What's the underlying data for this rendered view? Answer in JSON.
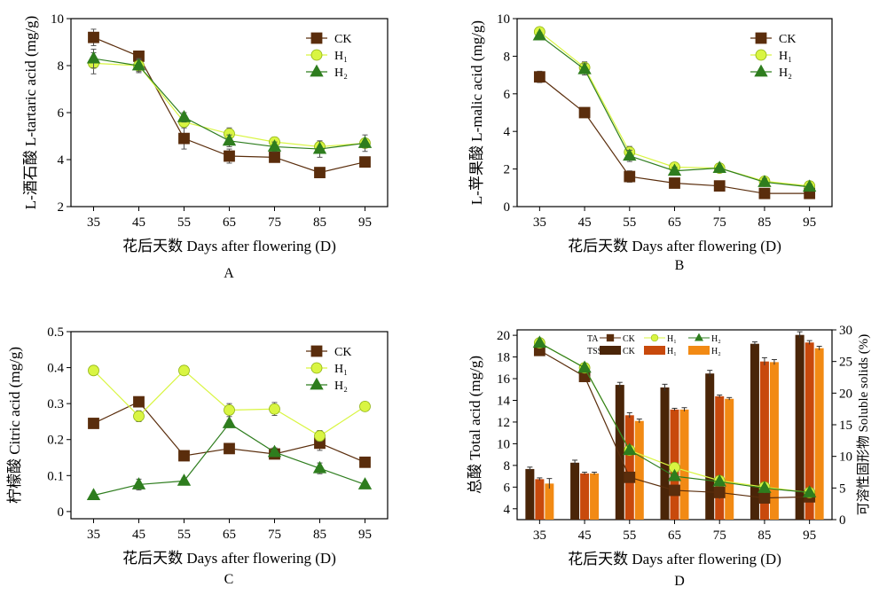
{
  "colors": {
    "ck": "#5a2d0c",
    "h1": "#d9f542",
    "h2": "#2e7d1e",
    "tss_ck": "#4a2508",
    "tss_h1": "#c8490c",
    "tss_h2": "#f28a14",
    "h1_stroke": "#8fb314"
  },
  "chart_data": [
    {
      "panel": "A",
      "type": "line",
      "xlabel": "花后天数 Days after flowering (D)",
      "ylabel": "L-酒石酸 L-tartaric acid (mg/g)",
      "x": [
        35,
        45,
        55,
        65,
        75,
        85,
        95
      ],
      "xlim": [
        30,
        100
      ],
      "ylim": [
        2,
        10
      ],
      "yticks": [
        2,
        4,
        6,
        8,
        10
      ],
      "legend_position": "top-right",
      "series": [
        {
          "name": "CK",
          "values": [
            9.2,
            8.4,
            4.9,
            4.15,
            4.1,
            3.45,
            3.9
          ],
          "errors": [
            0.35,
            0.2,
            0.45,
            0.3,
            0.1,
            0.1,
            0.1
          ]
        },
        {
          "name": "H₁",
          "values": [
            8.1,
            8.0,
            5.6,
            5.1,
            4.75,
            4.55,
            4.7
          ],
          "errors": [
            0.45,
            0.25,
            0.2,
            0.25,
            0.2,
            0.2,
            0.2
          ]
        },
        {
          "name": "H₂",
          "values": [
            8.3,
            8.0,
            5.8,
            4.8,
            4.55,
            4.45,
            4.7
          ],
          "errors": [
            0.4,
            0.3,
            0.2,
            0.25,
            0.2,
            0.35,
            0.35
          ]
        }
      ]
    },
    {
      "panel": "B",
      "type": "line",
      "xlabel": "花后天数 Days after flowering (D)",
      "ylabel": "L-苹果酸 L-malic acid (mg/g)",
      "x": [
        35,
        45,
        55,
        65,
        75,
        85,
        95
      ],
      "xlim": [
        30,
        100
      ],
      "ylim": [
        0,
        10
      ],
      "yticks": [
        0,
        2,
        4,
        6,
        8,
        10
      ],
      "legend_position": "top-right",
      "series": [
        {
          "name": "CK",
          "values": [
            6.9,
            5.0,
            1.6,
            1.25,
            1.1,
            0.7,
            0.7
          ],
          "errors": [
            0.3,
            0.1,
            0.3,
            0.15,
            0.2,
            0.1,
            0.1
          ]
        },
        {
          "name": "H₁",
          "values": [
            9.3,
            7.4,
            2.9,
            2.1,
            2.05,
            1.35,
            1.1
          ],
          "errors": [
            0.15,
            0.3,
            0.3,
            0.15,
            0.1,
            0.2,
            0.15
          ]
        },
        {
          "name": "H₂",
          "values": [
            9.1,
            7.3,
            2.7,
            1.9,
            2.05,
            1.3,
            1.05
          ],
          "errors": [
            0.15,
            0.3,
            0.3,
            0.2,
            0.1,
            0.2,
            0.15
          ]
        }
      ]
    },
    {
      "panel": "C",
      "type": "line",
      "xlabel": "花后天数 Days after flowering (D)",
      "ylabel": "柠檬酸 Citric acid (mg/g)",
      "x": [
        35,
        45,
        55,
        65,
        75,
        85,
        95
      ],
      "xlim": [
        30,
        100
      ],
      "ylim": [
        -0.02,
        0.5
      ],
      "yticks": [
        0,
        0.1,
        0.2,
        0.3,
        0.4,
        0.5
      ],
      "legend_position": "top-right",
      "series": [
        {
          "name": "CK",
          "values": [
            0.245,
            0.305,
            0.155,
            0.175,
            0.16,
            0.19,
            0.137
          ],
          "errors": [
            0.008,
            0.008,
            0.008,
            0.008,
            0.008,
            0.02,
            0.008
          ]
        },
        {
          "name": "H₁",
          "values": [
            0.392,
            0.265,
            0.392,
            0.282,
            0.285,
            0.21,
            0.292
          ],
          "errors": [
            0.008,
            0.015,
            0.012,
            0.018,
            0.018,
            0.015,
            0.012
          ]
        },
        {
          "name": "H₂",
          "values": [
            0.045,
            0.075,
            0.085,
            0.245,
            0.165,
            0.12,
            0.075
          ],
          "errors": [
            0.005,
            0.015,
            0.008,
            0.008,
            0.012,
            0.015,
            0.008
          ]
        }
      ]
    },
    {
      "panel": "D",
      "type": "bar+line",
      "xlabel": "花后天数 Days after flowering (D)",
      "ylabel": "总酸 Total acid (mg/g)",
      "ylabel_right": "可溶性固形物 Soluble solids (%)",
      "x": [
        35,
        45,
        55,
        65,
        75,
        85,
        95
      ],
      "xlim": [
        30,
        100
      ],
      "ylim": [
        3,
        20.5
      ],
      "yticks": [
        4,
        6,
        8,
        10,
        12,
        14,
        16,
        18,
        20
      ],
      "ylim_right": [
        0,
        30
      ],
      "yticks_right": [
        0,
        5,
        10,
        15,
        20,
        25,
        30
      ],
      "legend_position": "top-center",
      "legend_groups": [
        "TA",
        "TSS"
      ],
      "lines_TA": [
        {
          "name": "CK",
          "values": [
            18.6,
            16.2,
            6.9,
            5.7,
            5.5,
            5.0,
            5.1
          ],
          "errors": [
            0.3,
            0.5,
            0.3,
            0.5,
            0.6,
            0.4,
            0.3
          ]
        },
        {
          "name": "H₁",
          "values": [
            19.3,
            17.0,
            9.4,
            7.8,
            6.6,
            6.0,
            5.5
          ],
          "errors": [
            0.2,
            0.3,
            0.3,
            0.3,
            0.3,
            0.3,
            0.2
          ]
        },
        {
          "name": "H₂",
          "values": [
            19.3,
            17.0,
            9.4,
            7.0,
            6.5,
            5.9,
            5.5
          ],
          "errors": [
            0.2,
            0.3,
            0.3,
            0.3,
            0.3,
            0.3,
            0.2
          ]
        }
      ],
      "bars_TSS": [
        {
          "name": "CK",
          "values": [
            8.0,
            9.0,
            21.3,
            20.9,
            23.1,
            27.8,
            29.2
          ],
          "errors": [
            0.3,
            0.4,
            0.4,
            0.5,
            0.5,
            0.3,
            0.5
          ]
        },
        {
          "name": "H₁",
          "values": [
            6.4,
            7.3,
            16.5,
            17.4,
            19.5,
            25.0,
            28.0
          ],
          "errors": [
            0.2,
            0.2,
            0.4,
            0.2,
            0.2,
            0.6,
            0.3
          ]
        },
        {
          "name": "H₂",
          "values": [
            5.7,
            7.3,
            15.6,
            17.4,
            19.1,
            24.9,
            27.1
          ],
          "errors": [
            0.8,
            0.2,
            0.3,
            0.3,
            0.2,
            0.4,
            0.3
          ]
        }
      ]
    }
  ],
  "panel_labels": [
    "A",
    "B",
    "C",
    "D"
  ]
}
